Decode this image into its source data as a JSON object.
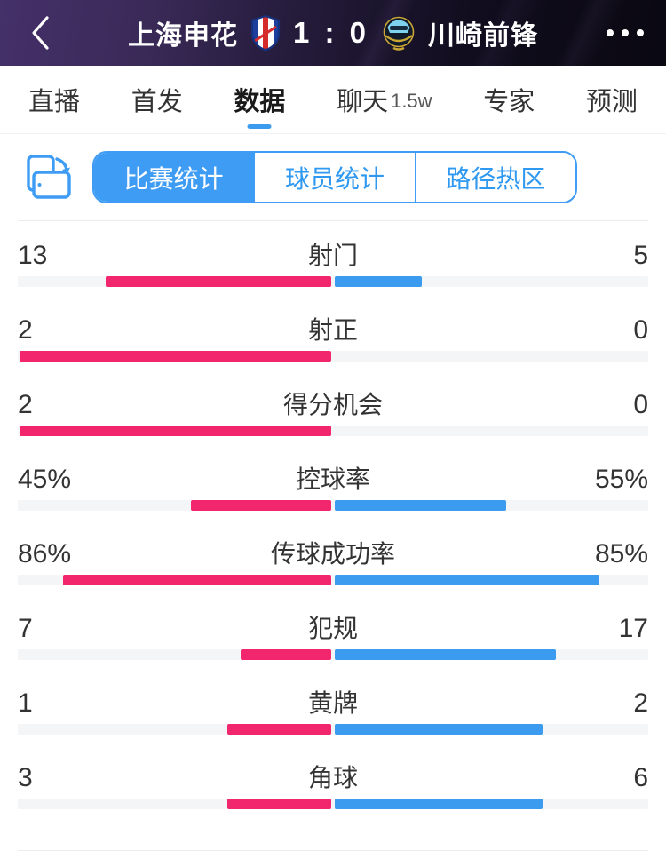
{
  "header": {
    "home_team": "上海申花",
    "score": "1 : 0",
    "away_team": "川崎前锋",
    "back_icon": "chevron-left",
    "menu_icon": "more-ellipsis",
    "home_logo": "shenhua-crest",
    "away_logo": "kawasaki-crest"
  },
  "tabs": {
    "items": [
      {
        "label": "直播"
      },
      {
        "label": "首发"
      },
      {
        "label": "数据",
        "active": true
      },
      {
        "label": "聊天",
        "badge": "1.5w"
      },
      {
        "label": "专家"
      },
      {
        "label": "预测"
      }
    ]
  },
  "subtabs": {
    "rotate_icon": "rotate-device",
    "items": [
      {
        "label": "比赛统计",
        "active": true
      },
      {
        "label": "球员统计"
      },
      {
        "label": "路径热区"
      }
    ]
  },
  "colors": {
    "home_bar": "#f2266c",
    "away_bar": "#3b9bee",
    "accent_blue": "#3e9cf4",
    "track": "#f4f5f7"
  },
  "chart_data": {
    "type": "bar",
    "orientation": "horizontal-split-from-center",
    "title": "比赛统计",
    "series": [
      {
        "name": "上海申花",
        "color": "#f2266c"
      },
      {
        "name": "川崎前锋",
        "color": "#3b9bee"
      }
    ],
    "rows": [
      {
        "label": "射门",
        "home": 13,
        "away": 5,
        "home_text": "13",
        "away_text": "5",
        "unit": ""
      },
      {
        "label": "射正",
        "home": 2,
        "away": 0,
        "home_text": "2",
        "away_text": "0",
        "unit": ""
      },
      {
        "label": "得分机会",
        "home": 2,
        "away": 0,
        "home_text": "2",
        "away_text": "0",
        "unit": ""
      },
      {
        "label": "控球率",
        "home": 45,
        "away": 55,
        "home_text": "45%",
        "away_text": "55%",
        "unit": "%"
      },
      {
        "label": "传球成功率",
        "home": 86,
        "away": 85,
        "home_text": "86%",
        "away_text": "85%",
        "unit": "%"
      },
      {
        "label": "犯规",
        "home": 7,
        "away": 17,
        "home_text": "7",
        "away_text": "17",
        "unit": ""
      },
      {
        "label": "黄牌",
        "home": 1,
        "away": 2,
        "home_text": "1",
        "away_text": "2",
        "unit": ""
      },
      {
        "label": "角球",
        "home": 3,
        "away": 6,
        "home_text": "3",
        "away_text": "6",
        "unit": ""
      }
    ]
  }
}
